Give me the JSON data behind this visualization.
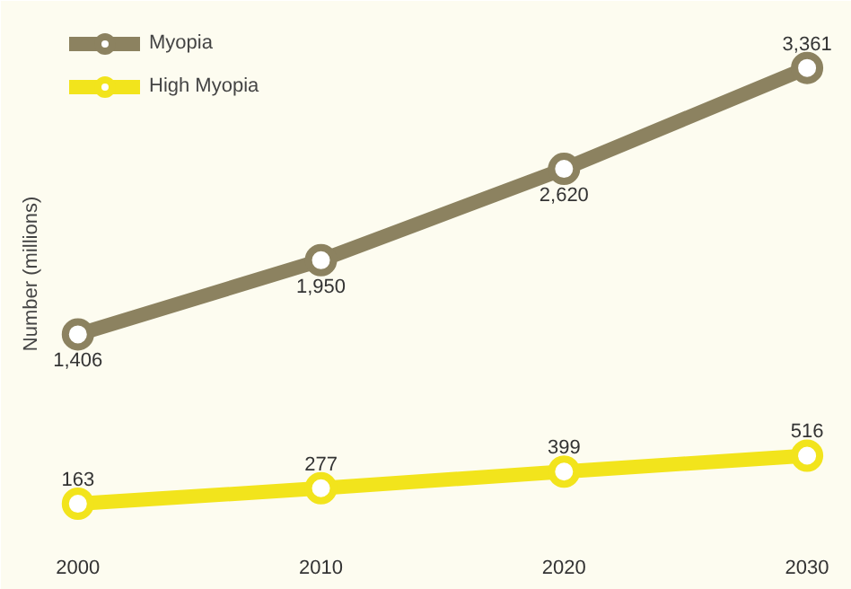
{
  "chart_data": {
    "type": "line",
    "ylabel": "Number (millions)",
    "x": [
      2000,
      2010,
      2020,
      2030
    ],
    "series": [
      {
        "name": "Myopia",
        "color": "#8c8260",
        "values": [
          1406,
          1950,
          2620,
          3361
        ],
        "value_labels": [
          "1,406",
          "1,950",
          "2,620",
          "3,361"
        ]
      },
      {
        "name": "High Myopia",
        "color": "#f2e41c",
        "values": [
          163,
          277,
          399,
          516
        ],
        "value_labels": [
          "163",
          "277",
          "399",
          "516"
        ]
      }
    ],
    "xlim": [
      1998.9,
      2031.4
    ],
    "xticks": [
      2000,
      2010,
      2020,
      2030
    ],
    "ylim": [
      -100,
      3800
    ],
    "tick_labels": "x",
    "legend": "top left",
    "marker": "circle",
    "line_style": "solid",
    "grid": false
  }
}
